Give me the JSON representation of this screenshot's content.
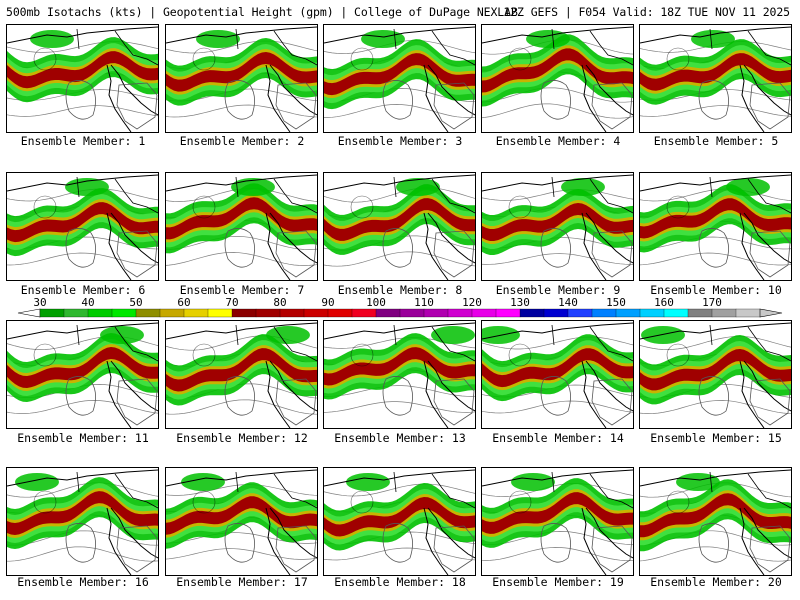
{
  "header": {
    "left": "500mb Isotachs (kts) | Geopotential Height (gpm) | College of DuPage NEXLAB",
    "right": "12Z GEFS | F054 Valid: 18Z TUE NOV 11 2025"
  },
  "members": [
    "Ensemble Member: 1",
    "Ensemble Member: 2",
    "Ensemble Member: 3",
    "Ensemble Member: 4",
    "Ensemble Member: 5",
    "Ensemble Member: 6",
    "Ensemble Member: 7",
    "Ensemble Member: 8",
    "Ensemble Member: 9",
    "Ensemble Member: 10",
    "Ensemble Member: 11",
    "Ensemble Member: 12",
    "Ensemble Member: 13",
    "Ensemble Member: 14",
    "Ensemble Member: 15",
    "Ensemble Member: 16",
    "Ensemble Member: 17",
    "Ensemble Member: 18",
    "Ensemble Member: 19",
    "Ensemble Member: 20"
  ],
  "colorbar": {
    "labels": [
      "30",
      "40",
      "50",
      "60",
      "70",
      "80",
      "90",
      "100",
      "110",
      "120",
      "130",
      "140",
      "150",
      "160",
      "170"
    ],
    "colors": [
      "#00a000",
      "#2fb82f",
      "#00cc00",
      "#00e800",
      "#8e8e00",
      "#c6a800",
      "#e6d000",
      "#ffff00",
      "#8b0000",
      "#a00000",
      "#b40000",
      "#cc0000",
      "#e00000",
      "#f00020",
      "#800080",
      "#9a009a",
      "#b000b0",
      "#d000d0",
      "#e800e8",
      "#ff00ff",
      "#0000a0",
      "#0000d0",
      "#2040ff",
      "#0080ff",
      "#00a0ff",
      "#00d0ff",
      "#00ffff",
      "#808080",
      "#a0a0a0",
      "#c8c8c8"
    ]
  },
  "palette": {
    "outer_green": "#00c000",
    "light_green": "#40e040",
    "yellow_band": "#c8b400",
    "core_red": "#a00000",
    "coast": "#000000",
    "height_line": "#808080"
  }
}
